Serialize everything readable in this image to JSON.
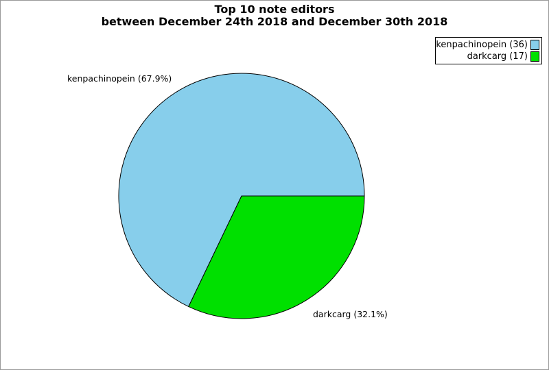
{
  "page": {
    "background": "#ffffff",
    "border_color": "#999999"
  },
  "title": {
    "line1": "Top 10 note editors",
    "line2": "between December 24th 2018 and December 30th 2018"
  },
  "legend": {
    "position": "top-right",
    "items": [
      {
        "label": "kenpachinopein (36)",
        "color": "#87CEEB"
      },
      {
        "label": "darkcarg (17)",
        "color": "#00E000"
      }
    ]
  },
  "chart_data": {
    "type": "pie",
    "title": "Top 10 note editors between December 24th 2018 and December 30th 2018",
    "slices": [
      {
        "name": "kenpachinopein",
        "count": 36,
        "pct": 67.9,
        "color": "#87CEEB",
        "label": "kenpachinopein (67.9%)"
      },
      {
        "name": "darkcarg",
        "count": 17,
        "pct": 32.1,
        "color": "#00E000",
        "label": "darkcarg (32.1%)"
      }
    ],
    "start_angle_deg": 0,
    "direction": "counterclockwise",
    "stroke": "#000000",
    "legend_position": "top-right",
    "grid": false
  }
}
